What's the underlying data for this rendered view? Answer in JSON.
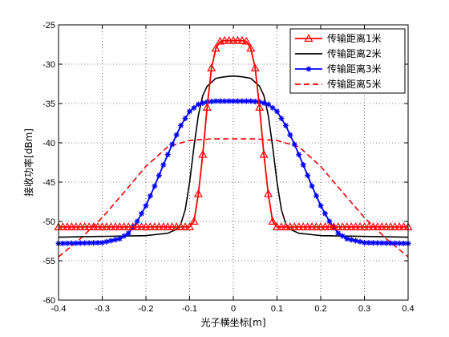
{
  "chart_data": {
    "type": "line",
    "title": "",
    "xlabel": "光子横坐标[m]",
    "ylabel": "接收功率[dBm]",
    "xlim": [
      -0.4,
      0.4
    ],
    "ylim": [
      -60,
      -25
    ],
    "xticks": [
      -0.4,
      -0.3,
      -0.2,
      -0.1,
      0,
      0.1,
      0.2,
      0.3,
      0.4
    ],
    "yticks": [
      -60,
      -55,
      -50,
      -45,
      -40,
      -35,
      -30,
      -25
    ],
    "xtick_labels": [
      "-0.4",
      "-0.3",
      "-0.2",
      "-0.1",
      "0",
      "0.1",
      "0.2",
      "0.3",
      "0.4"
    ],
    "ytick_labels": [
      "-60",
      "-55",
      "-50",
      "-45",
      "-40",
      "-35",
      "-30",
      "-25"
    ],
    "grid": true,
    "legend_position": "top-right",
    "series": [
      {
        "name": "传输距离1米",
        "color": "#ff0000",
        "line_style": "solid",
        "marker": "triangle",
        "x": [
          -0.4,
          -0.1,
          -0.09,
          -0.08,
          -0.07,
          -0.06,
          -0.05,
          -0.04,
          -0.03,
          -0.02,
          -0.01,
          0,
          0.01,
          0.02,
          0.03,
          0.04,
          0.05,
          0.06,
          0.07,
          0.08,
          0.09,
          0.1,
          0.4
        ],
        "y": [
          -50.7,
          -50.7,
          -50.0,
          -46.5,
          -41.5,
          -35.5,
          -30.5,
          -28.0,
          -27.1,
          -27.0,
          -27.0,
          -27.0,
          -27.0,
          -27.0,
          -27.1,
          -28.0,
          -30.5,
          -35.5,
          -41.5,
          -46.5,
          -50.0,
          -50.7,
          -50.7
        ],
        "marker_step": 0.01
      },
      {
        "name": "传输距离2米",
        "color": "#000000",
        "line_style": "solid",
        "marker": "none",
        "x": [
          -0.4,
          -0.2,
          -0.15,
          -0.13,
          -0.12,
          -0.11,
          -0.1,
          -0.09,
          -0.08,
          -0.07,
          -0.06,
          -0.04,
          -0.02,
          0,
          0.02,
          0.04,
          0.06,
          0.07,
          0.08,
          0.09,
          0.1,
          0.11,
          0.12,
          0.13,
          0.15,
          0.2,
          0.4
        ],
        "y": [
          -52.0,
          -51.8,
          -51.5,
          -51.0,
          -50.3,
          -48.5,
          -45.0,
          -40.5,
          -36.5,
          -34.0,
          -32.8,
          -31.8,
          -31.6,
          -31.5,
          -31.6,
          -31.8,
          -32.8,
          -34.0,
          -36.5,
          -40.5,
          -45.0,
          -48.5,
          -50.3,
          -51.0,
          -51.5,
          -51.8,
          -52.0
        ]
      },
      {
        "name": "传输距离3米",
        "color": "#0000ff",
        "line_style": "solid",
        "marker": "star",
        "x": [
          -0.4,
          -0.3,
          -0.26,
          -0.24,
          -0.22,
          -0.2,
          -0.18,
          -0.16,
          -0.14,
          -0.12,
          -0.1,
          -0.08,
          -0.06,
          -0.04,
          -0.02,
          0,
          0.02,
          0.04,
          0.06,
          0.08,
          0.1,
          0.12,
          0.14,
          0.16,
          0.18,
          0.2,
          0.22,
          0.24,
          0.26,
          0.3,
          0.4
        ],
        "y": [
          -52.8,
          -52.7,
          -52.2,
          -51.5,
          -50.0,
          -48.0,
          -45.5,
          -42.8,
          -40.2,
          -37.8,
          -36.0,
          -35.1,
          -34.8,
          -34.7,
          -34.7,
          -34.7,
          -34.7,
          -34.7,
          -34.8,
          -35.1,
          -36.0,
          -37.8,
          -40.2,
          -42.8,
          -45.5,
          -48.0,
          -50.0,
          -51.5,
          -52.2,
          -52.7,
          -52.8
        ],
        "marker_step": 0.01
      },
      {
        "name": "传输距离5米",
        "color": "#ff0000",
        "line_style": "dashed",
        "marker": "none",
        "x": [
          -0.4,
          -0.35,
          -0.3,
          -0.25,
          -0.2,
          -0.15,
          -0.1,
          -0.05,
          0,
          0.05,
          0.1,
          0.15,
          0.2,
          0.25,
          0.3,
          0.35,
          0.4
        ],
        "y": [
          -54.5,
          -52.2,
          -49.5,
          -46.3,
          -43.0,
          -40.5,
          -39.7,
          -39.5,
          -39.5,
          -39.5,
          -39.7,
          -40.5,
          -43.0,
          -46.3,
          -49.5,
          -52.2,
          -54.5
        ]
      }
    ]
  }
}
